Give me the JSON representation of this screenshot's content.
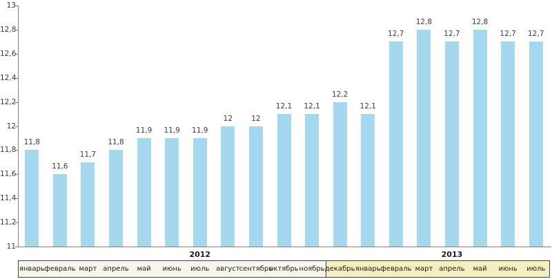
{
  "chart_data": {
    "type": "bar",
    "title": "",
    "xlabel": "",
    "ylabel": "",
    "ylim": [
      11,
      13
    ],
    "y_tick_values": [
      13,
      12.8,
      12.6,
      12.4,
      12.2,
      12,
      11.8,
      11.6,
      11.4,
      11.2,
      11
    ],
    "y_tick_labels": [
      "13",
      "12,8",
      "12,6",
      "12,4",
      "12,2",
      "12",
      "11,8",
      "11,6",
      "11,4",
      "11,2",
      "11"
    ],
    "categories": [
      "январь",
      "февраль",
      "март",
      "апрель",
      "май",
      "июнь",
      "июль",
      "август",
      "сентябрь",
      "октябрь",
      "ноябрь",
      "декабрь",
      "январь",
      "февраль",
      "март",
      "апрель",
      "май",
      "июнь",
      "июль"
    ],
    "values": [
      11.8,
      11.6,
      11.7,
      11.8,
      11.9,
      11.9,
      11.9,
      12,
      12,
      12.1,
      12.1,
      12.2,
      12.1,
      12.7,
      12.8,
      12.7,
      12.8,
      12.7,
      12.7
    ],
    "value_labels": [
      "11,8",
      "11,6",
      "11,7",
      "11,8",
      "11,9",
      "11,9",
      "11,9",
      "12",
      "12",
      "12,1",
      "12,1",
      "12,2",
      "12,1",
      "12,7",
      "12,8",
      "12,7",
      "12,8",
      "12,7",
      "12,7"
    ],
    "year_groups": [
      {
        "label": "2012",
        "from_index": 0,
        "to_index": 12
      },
      {
        "label": "2013",
        "from_index": 12,
        "to_index": 18
      }
    ],
    "highlight": {
      "from_index": 11,
      "to_index": 18,
      "color": "#f5efbf"
    },
    "legend": null,
    "grid": false,
    "colors": {
      "bar": "#a5d7ef",
      "axis": "#808080",
      "text": "#3a3a3a",
      "month_box_bg": "#f8f6ec",
      "month_box_border": "#404040"
    }
  }
}
